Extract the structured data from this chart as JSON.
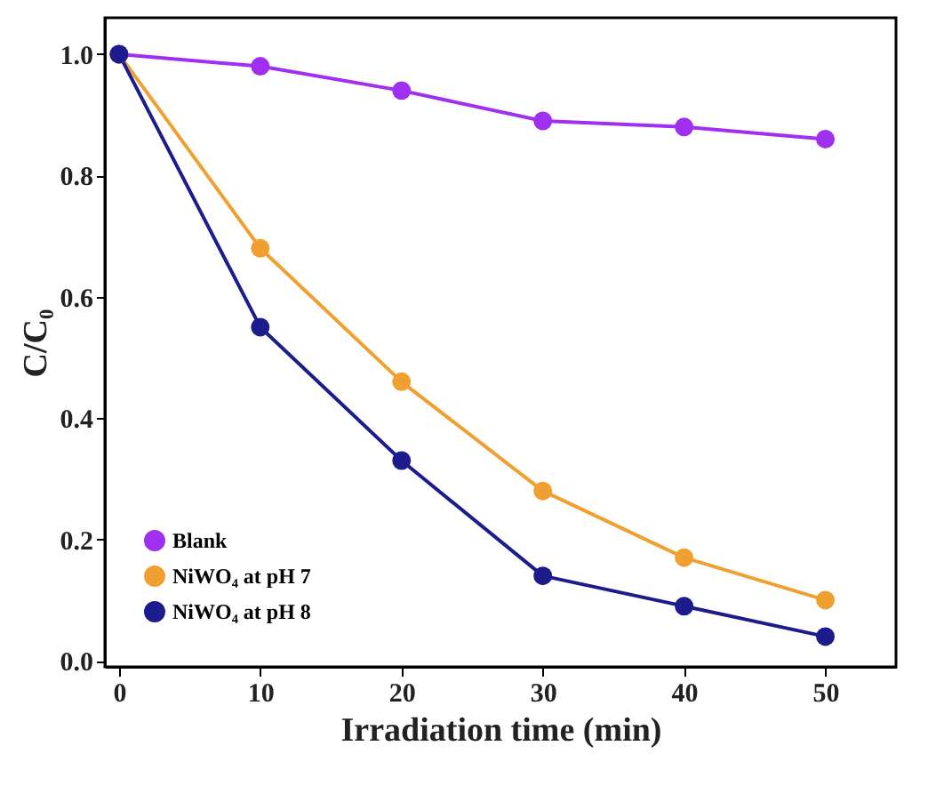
{
  "chart_data": {
    "type": "line",
    "xlabel": "Irradiation time (min)",
    "ylabel": "C/C₀",
    "x": [
      0,
      10,
      20,
      30,
      40,
      50
    ],
    "series": [
      {
        "name": "Blank",
        "color": "#a030f0",
        "values": [
          1.0,
          0.98,
          0.94,
          0.89,
          0.88,
          0.86
        ]
      },
      {
        "name": "NiWO₄ at pH 7",
        "color": "#f0a030",
        "values": [
          1.0,
          0.68,
          0.46,
          0.28,
          0.17,
          0.1
        ]
      },
      {
        "name": "NiWO₄ at pH 8",
        "color": "#1c1c8c",
        "values": [
          1.0,
          0.55,
          0.33,
          0.14,
          0.09,
          0.04
        ]
      }
    ],
    "xlim": [
      -1,
      55
    ],
    "xticks": [
      0,
      10,
      20,
      30,
      40,
      50
    ],
    "ylim": [
      -0.01,
      1.06
    ],
    "yticks": [
      {
        "value": 0,
        "label": "0.0"
      },
      {
        "value": 0.2,
        "label": "0.2"
      },
      {
        "value": 0.4,
        "label": "0.4"
      },
      {
        "value": 0.6,
        "label": "0.6"
      },
      {
        "value": 0.8,
        "label": "0.8"
      },
      {
        "value": 1,
        "label": "1.0"
      }
    ],
    "marker": "circle",
    "legend": "bottom left",
    "grid": false
  }
}
